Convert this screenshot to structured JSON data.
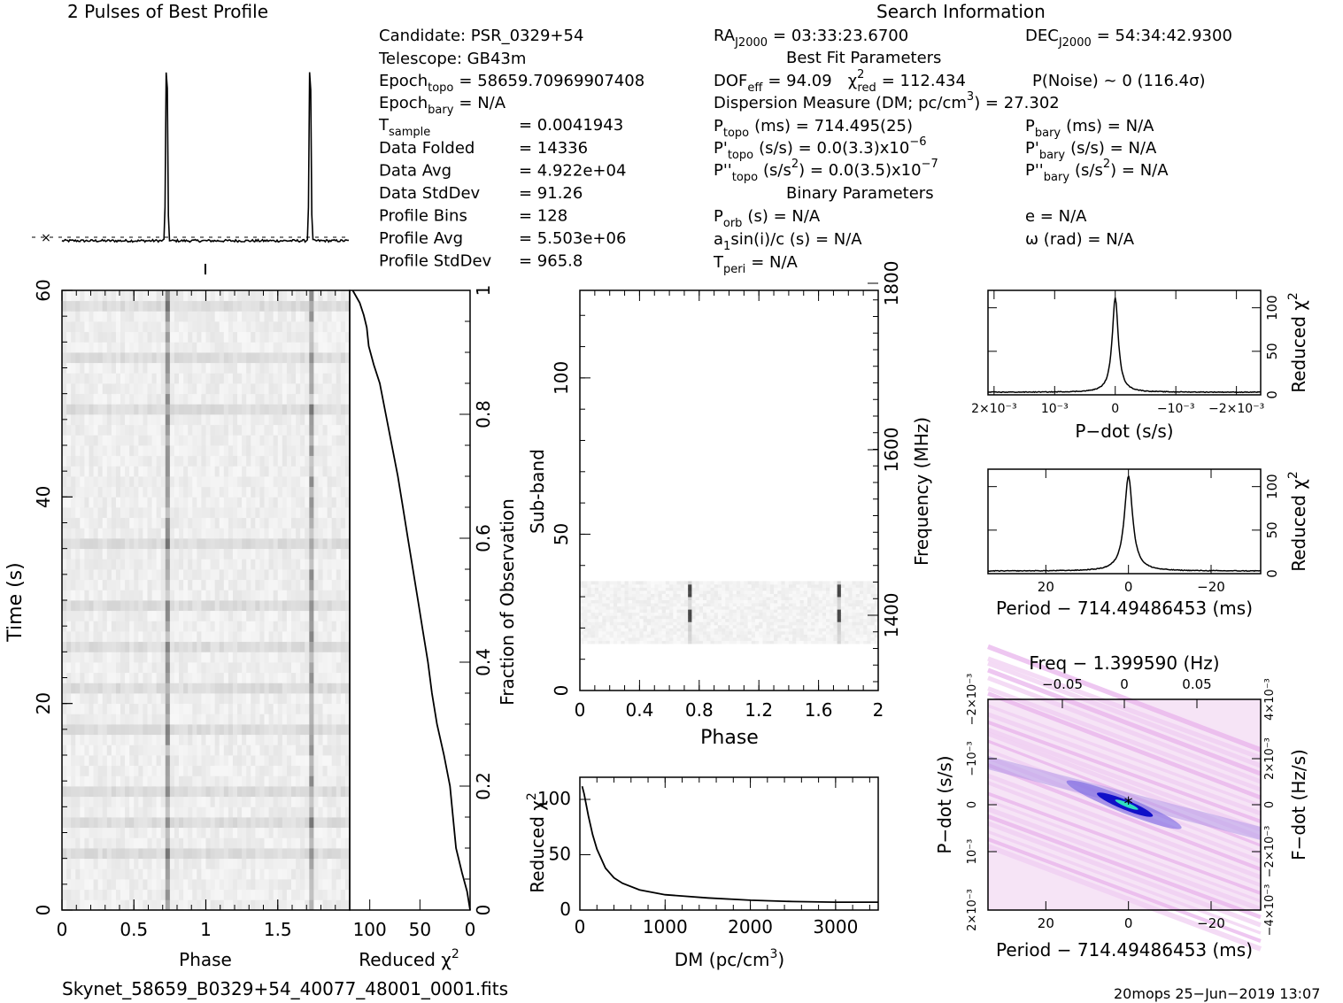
{
  "profile_title": "2 Pulses of Best Profile",
  "search_title": "Search Information",
  "info": {
    "candidate": "Candidate:  PSR_0329+54",
    "telescope": "Telescope:  GB43m",
    "epoch_topo": "Epoch",
    "epoch_topo_sub": "topo",
    "epoch_topo_val": "= 58659.70969907408",
    "epoch_bary": "Epoch",
    "epoch_bary_sub": "bary",
    "epoch_bary_val": "= N/A",
    "t_sample": "T",
    "t_sample_sub": "sample",
    "t_sample_val": "=   0.0041943",
    "rows": [
      {
        "label": "Data Folded",
        "value": "=   14336"
      },
      {
        "label": "Data Avg",
        "value": "=   4.922e+04"
      },
      {
        "label": "Data StdDev",
        "value": "=   91.26"
      },
      {
        "label": "Profile Bins",
        "value": "=   128"
      },
      {
        "label": "Profile Avg",
        "value": "=   5.503e+06"
      },
      {
        "label": "Profile StdDev",
        "value": "=   965.8"
      }
    ],
    "ra": "RA",
    "ra_sub": "J2000",
    "ra_val": "= 03:33:23.6700",
    "dec": "DEC",
    "dec_sub": "J2000",
    "dec_val": "= 54:34:42.9300",
    "best_fit": "Best Fit Parameters",
    "dof": "DOF",
    "dof_sub": "eff",
    "dof_val": "= 94.09",
    "chi": "χ",
    "chi_sup": "2",
    "chi_sub": "red",
    "chi_val": "= 112.434",
    "pnoise": "P(Noise) ~ 0   (116.4σ)",
    "dm": "Dispersion Measure (DM; pc/cm",
    "dm_sup": "3",
    "dm_val": ") = 27.302",
    "ptopo": "P",
    "ptopo_sub": "topo",
    "ptopo_val": "(ms) =  714.495(25)",
    "pbary": "P",
    "pbary_sub": "bary",
    "pbary_val": "(ms) = N/A",
    "pdtopo": "P'",
    "pdtopo_sub": "topo",
    "pdtopo_val": "(s/s) = 0.0(3.3)x10",
    "pdtopo_exp": "−6",
    "pdbary": "P'",
    "pdbary_sub": "bary",
    "pdbary_val": "(s/s) = N/A",
    "pddtopo": "P''",
    "pddtopo_sub": "topo",
    "pddtopo_val": "(s/s",
    "pddtopo_sup": "2",
    "pddtopo_val2": ") = 0.0(3.5)x10",
    "pddtopo_exp": "−7",
    "pddbary": "P''",
    "pddbary_sub": "bary",
    "pddbary_val": "(s/s",
    "pddbary_sup": "2",
    "pddbary_val2": ") = N/A",
    "binary": "Binary Parameters",
    "porb": "P",
    "porb_sub": "orb",
    "porb_val": "(s) = N/A",
    "ecc": "e = N/A",
    "a1": "a",
    "a1_sub": "1",
    "a1_val": "sin(i)/c (s) = N/A",
    "omega": "ω (rad) = N/A",
    "tperi": "T",
    "tperi_sub": "peri",
    "tperi_val": "= N/A"
  },
  "footer_file": "Skynet_58659_B0329+54_40077_48001_0001.fits",
  "footer_stamp": "20mops 25−Jun−2019 13:07",
  "colors": {
    "ink": "#000000",
    "grey_lo": "#f4f4f4",
    "grey_hi": "#303030",
    "magenta": "#f0c8f0",
    "blue": "#2020d0",
    "cyan": "#30e0c0"
  },
  "chart_data": [
    {
      "type": "line",
      "name_hint": "profile",
      "title": "2 Pulses of Best Profile",
      "x_range": [
        0,
        2
      ],
      "pulse_phases": [
        0.73,
        1.73
      ],
      "baseline": 0.03,
      "peak": 1.0
    },
    {
      "type": "heatmap",
      "name_hint": "time-phase",
      "xlabel": "Phase",
      "ylabel": "Time (s)",
      "xlim": [
        0,
        2
      ],
      "ylim": [
        0,
        60
      ],
      "xticks": [
        "0",
        "0.5",
        "1",
        "1.5"
      ],
      "yticks": [
        "0",
        "20",
        "40",
        "60"
      ],
      "pulse_phases": [
        0.73,
        1.73
      ]
    },
    {
      "type": "line",
      "name_hint": "reduced-chi2-vs-fraction",
      "xlabel": "Reduced χ²",
      "ylabel": "Fraction of Observation",
      "xlim": [
        120,
        0
      ],
      "ylim": [
        0,
        1
      ],
      "xticks": [
        "100",
        "50",
        "0"
      ],
      "yticks": [
        "0",
        "0.2",
        "0.4",
        "0.6",
        "0.8",
        "1"
      ],
      "x": [
        0,
        3,
        8,
        14,
        17,
        20,
        26,
        33,
        38,
        42,
        47,
        52,
        57,
        62,
        67,
        72,
        78,
        84,
        90,
        96,
        101,
        103,
        106,
        110,
        117
      ],
      "y": [
        0,
        0.03,
        0.06,
        0.1,
        0.15,
        0.2,
        0.25,
        0.3,
        0.35,
        0.4,
        0.45,
        0.5,
        0.55,
        0.6,
        0.65,
        0.7,
        0.75,
        0.8,
        0.85,
        0.88,
        0.91,
        0.94,
        0.96,
        0.98,
        1.0
      ]
    },
    {
      "type": "heatmap",
      "name_hint": "subband-phase",
      "xlabel": "Phase",
      "ylabel": "Sub-band",
      "ylabel_right": "Frequency (MHz)",
      "xlim": [
        0,
        2
      ],
      "ylim": [
        0,
        128
      ],
      "xticks": [
        "0",
        "0.4",
        "0.8",
        "1.2",
        "1.6",
        "2"
      ],
      "yticks": [
        "0",
        "50",
        "100"
      ],
      "yticks_right": [
        "1400",
        "1600",
        "1800"
      ],
      "band_range": [
        15,
        35
      ],
      "pulse_phases": [
        0.73,
        1.74
      ],
      "bright_subbands": [
        24,
        32
      ]
    },
    {
      "type": "line",
      "name_hint": "dm-curve",
      "xlabel": "DM (pc/cm³)",
      "ylabel": "Reduced χ²",
      "xlim": [
        0,
        3500
      ],
      "ylim": [
        0,
        120
      ],
      "xticks": [
        "0",
        "1000",
        "2000",
        "3000"
      ],
      "yticks": [
        "0",
        "50",
        "100"
      ],
      "x": [
        27,
        50,
        100,
        150,
        200,
        300,
        400,
        500,
        700,
        1000,
        1500,
        2000,
        2500,
        3000,
        3500
      ],
      "y": [
        112,
        105,
        85,
        68,
        55,
        38,
        29,
        24,
        18,
        14,
        11,
        9,
        8,
        7,
        7
      ]
    },
    {
      "type": "line",
      "name_hint": "pdot-curve",
      "xlabel": "P−dot (s/s)",
      "ylabel": "Reduced χ²",
      "xlim": [
        0.0021,
        -0.0024
      ],
      "ylim": [
        0,
        120
      ],
      "xticks": [
        "2×10⁻³",
        "10⁻³",
        "0",
        "−10⁻³",
        "−2×10⁻³"
      ],
      "yticks": [
        "0",
        "50",
        "100"
      ],
      "peak_x": 0,
      "peak_y": 112
    },
    {
      "type": "line",
      "name_hint": "period-curve",
      "xlabel": "Period − 714.49486453 (ms)",
      "ylabel": "Reduced χ²",
      "xlim": [
        34,
        -32
      ],
      "ylim": [
        0,
        120
      ],
      "xticks": [
        "20",
        "0",
        "−20"
      ],
      "yticks": [
        "0",
        "50",
        "100"
      ],
      "peak_x": 0,
      "peak_y": 112
    },
    {
      "type": "heatmap",
      "name_hint": "period-pdot-plane",
      "title": "Freq − 1.399590 (Hz)",
      "xlabel": "Period − 714.49486453 (ms)",
      "ylabel": "P−dot (s/s)",
      "ylabel_right": "F−dot (Hz/s)",
      "xlim": [
        34,
        -32
      ],
      "xticks": [
        "20",
        "0",
        "−20"
      ],
      "xticks_top": [
        "−0.05",
        "0",
        "0.05"
      ],
      "yticks": [
        "2×10⁻³",
        "10⁻³",
        "0",
        "−10⁻³",
        "−2×10⁻³"
      ],
      "yticks_right": [
        "−4×10⁻³",
        "−2×10⁻³",
        "0",
        "2×10⁻³",
        "4×10⁻³"
      ],
      "best_x": 0,
      "best_y": 0
    }
  ]
}
